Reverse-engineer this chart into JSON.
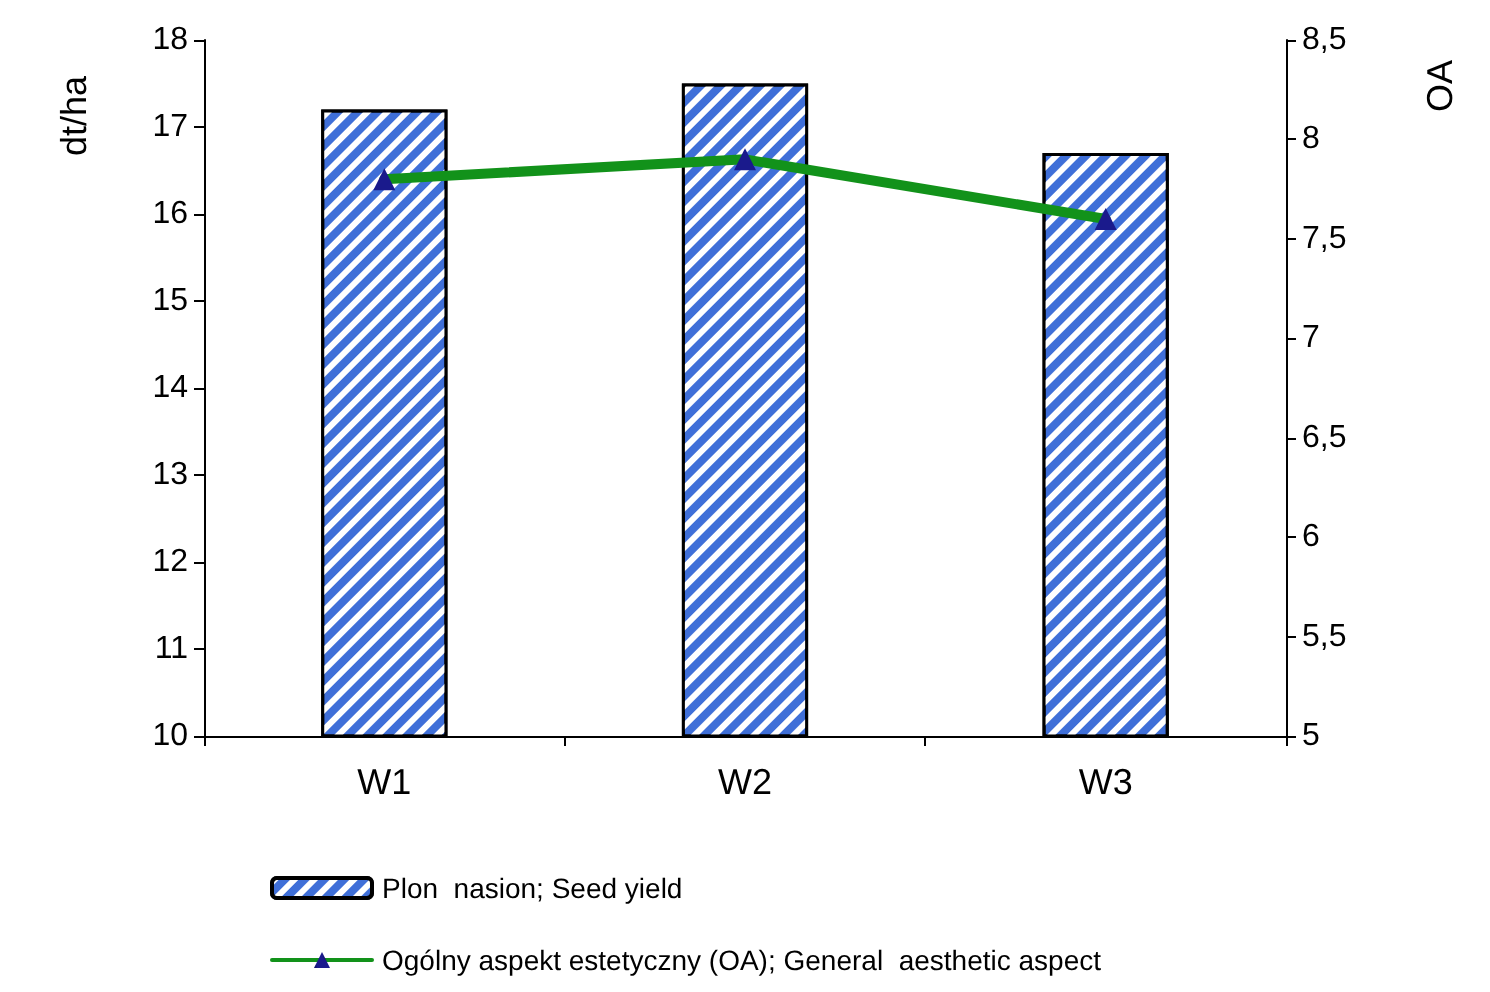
{
  "chart_data": {
    "type": "bar",
    "categories": [
      "W1",
      "W2",
      "W3"
    ],
    "ylabel": "dt/ha",
    "y2label": "OA",
    "series": [
      {
        "name": "Plon  nasion; Seed yield",
        "color": "#3f6fd8",
        "values": [
          17.2,
          17.5,
          16.7
        ]
      },
      {
        "name": "Ogólny aspekt estetyczny (OA); General  aesthetic aspect",
        "type": "line",
        "axis": "y2",
        "color": "#12921a",
        "values": [
          7.8,
          7.9,
          7.6
        ]
      }
    ],
    "ylim": [
      10,
      18
    ],
    "yticks": [
      10,
      11,
      12,
      13,
      14,
      15,
      16,
      17,
      18
    ],
    "y2lim": [
      5,
      8.5
    ],
    "y2ticks": [
      5,
      {
        "value": 5.5,
        "label": "5,5"
      },
      6,
      {
        "value": 6.5,
        "label": "6,5"
      },
      7,
      {
        "value": 7.5,
        "label": "7,5"
      },
      8,
      {
        "value": 8.5,
        "label": "8,5"
      }
    ],
    "grid": false,
    "legend": "bottom",
    "marker": "triangle",
    "line_style": "solid"
  }
}
